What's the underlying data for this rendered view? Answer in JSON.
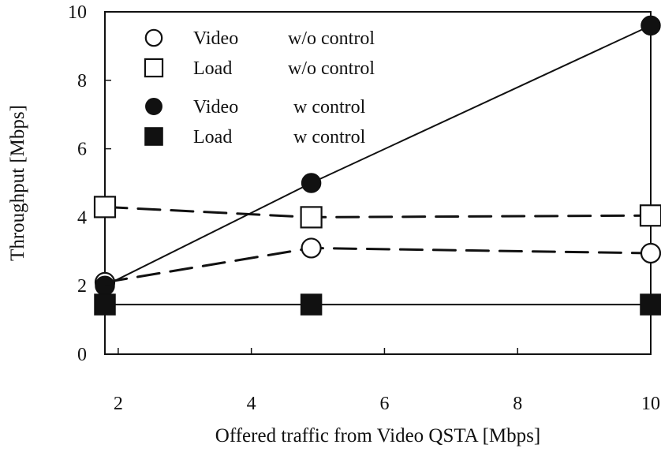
{
  "chart_data": {
    "type": "line",
    "title": "",
    "xlabel": "Offered traffic from Video QSTA [Mbps]",
    "ylabel": "Throughput [Mbps]",
    "xlim": [
      1.8,
      10
    ],
    "ylim": [
      0,
      10
    ],
    "x_ticks": [
      2,
      4,
      6,
      8,
      10
    ],
    "y_ticks": [
      0,
      2,
      4,
      6,
      8,
      10
    ],
    "grid": false,
    "legend_position": "top-left",
    "series": [
      {
        "name": "Video w/o control",
        "legend_label": "Video",
        "legend_condition": "w/o control",
        "marker": "circle-open",
        "line_style": "dashed",
        "x": [
          1.8,
          4.9,
          10
        ],
        "y": [
          2.1,
          3.1,
          2.95
        ]
      },
      {
        "name": "Load w/o control",
        "legend_label": "Load",
        "legend_condition": "w/o control",
        "marker": "square-open",
        "line_style": "dashed",
        "x": [
          1.8,
          4.9,
          10
        ],
        "y": [
          4.3,
          4.0,
          4.05
        ]
      },
      {
        "name": "Video w control",
        "legend_label": "Video",
        "legend_condition": "w control",
        "marker": "circle-filled",
        "line_style": "solid",
        "x": [
          1.8,
          4.9,
          10
        ],
        "y": [
          2.0,
          5.0,
          9.6
        ]
      },
      {
        "name": "Load w control",
        "legend_label": "Load",
        "legend_condition": "w control",
        "marker": "square-filled",
        "line_style": "solid",
        "x": [
          1.8,
          4.9,
          10
        ],
        "y": [
          1.45,
          1.45,
          1.45
        ]
      }
    ],
    "colors": {
      "line": "#111111",
      "marker_fill": "#111111",
      "marker_open_fill": "#ffffff"
    }
  }
}
